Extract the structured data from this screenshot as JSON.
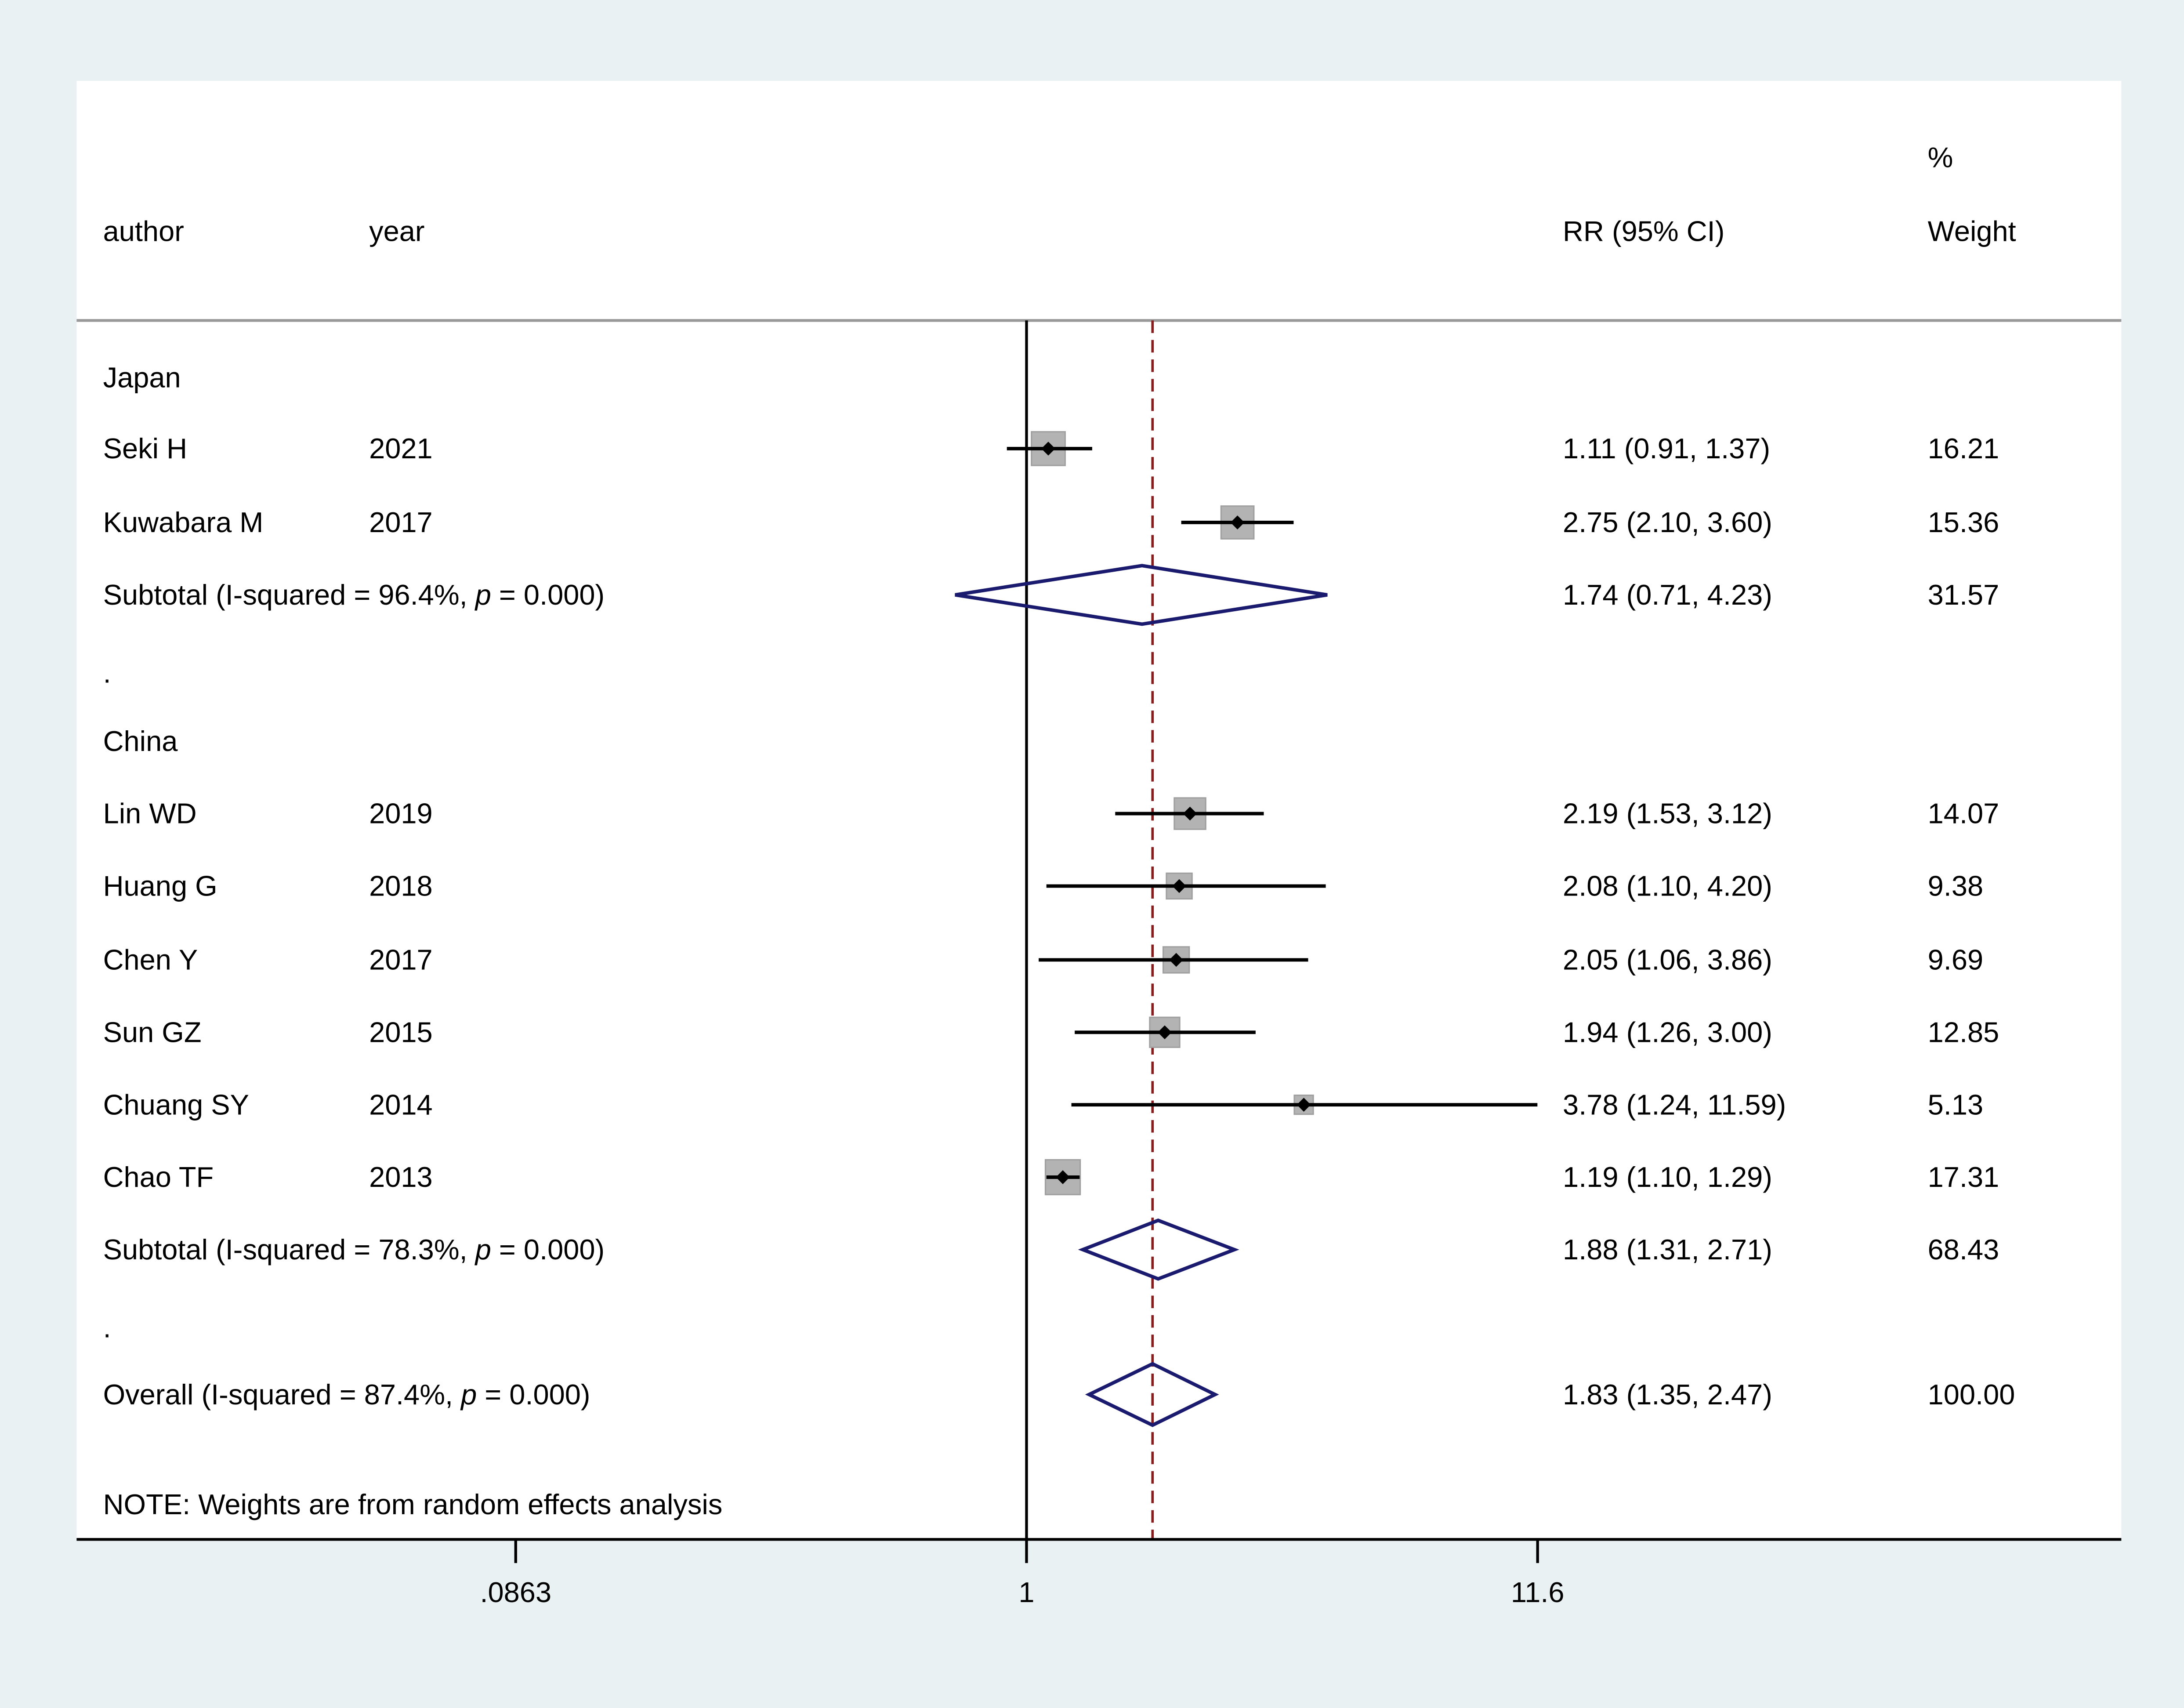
{
  "chart_data": {
    "type": "forest",
    "scale": "log",
    "headers": {
      "author": "author",
      "year": "year",
      "estimate": "RR (95% CI)",
      "weight_top": "%",
      "weight": "Weight"
    },
    "x_ticks": [
      {
        "value": 0.0863,
        "label": ".0863"
      },
      {
        "value": 1,
        "label": "1"
      },
      {
        "value": 11.6,
        "label": "11.6"
      }
    ],
    "xlim": [
      0.0863,
      11.6
    ],
    "null_line": 1,
    "overall_line": 1.83,
    "colors": {
      "background": "#e9f1f3",
      "diamond": "#1a1a6e",
      "overall_line": "#8b1a1a",
      "box": "#b3b3b3"
    },
    "rows": [
      {
        "kind": "group",
        "label": "Japan"
      },
      {
        "kind": "study",
        "author": "Seki H",
        "year": "2021",
        "rr": 1.11,
        "lo": 0.91,
        "hi": 1.37,
        "ci_text": "1.11 (0.91, 1.37)",
        "weight": "16.21"
      },
      {
        "kind": "study",
        "author": "Kuwabara M",
        "year": "2017",
        "rr": 2.75,
        "lo": 2.1,
        "hi": 3.6,
        "ci_text": "2.75 (2.10, 3.60)",
        "weight": "15.36"
      },
      {
        "kind": "subtotal",
        "label": "Subtotal  (I-squared = 96.4%,  p = 0.000)",
        "rr": 1.74,
        "lo": 0.71,
        "hi": 4.23,
        "ci_text": "1.74 (0.71, 4.23)",
        "weight": "31.57"
      },
      {
        "kind": "spacer",
        "label": "."
      },
      {
        "kind": "group",
        "label": "China"
      },
      {
        "kind": "study",
        "author": "Lin WD",
        "year": "2019",
        "rr": 2.19,
        "lo": 1.53,
        "hi": 3.12,
        "ci_text": "2.19 (1.53, 3.12)",
        "weight": "14.07"
      },
      {
        "kind": "study",
        "author": "Huang G",
        "year": "2018",
        "rr": 2.08,
        "lo": 1.1,
        "hi": 4.2,
        "ci_text": "2.08 (1.10, 4.20)",
        "weight": "9.38"
      },
      {
        "kind": "study",
        "author": "Chen Y",
        "year": "2017",
        "rr": 2.05,
        "lo": 1.06,
        "hi": 3.86,
        "ci_text": "2.05 (1.06, 3.86)",
        "weight": "9.69"
      },
      {
        "kind": "study",
        "author": "Sun GZ",
        "year": "2015",
        "rr": 1.94,
        "lo": 1.26,
        "hi": 3.0,
        "ci_text": "1.94 (1.26, 3.00)",
        "weight": "12.85"
      },
      {
        "kind": "study",
        "author": "Chuang SY",
        "year": "2014",
        "rr": 3.78,
        "lo": 1.24,
        "hi": 11.59,
        "ci_text": "3.78 (1.24, 11.59)",
        "weight": "5.13"
      },
      {
        "kind": "study",
        "author": "Chao TF",
        "year": "2013",
        "rr": 1.19,
        "lo": 1.1,
        "hi": 1.29,
        "ci_text": "1.19 (1.10, 1.29)",
        "weight": "17.31"
      },
      {
        "kind": "subtotal",
        "label": "Subtotal  (I-squared = 78.3%,  p = 0.000)",
        "rr": 1.88,
        "lo": 1.31,
        "hi": 2.71,
        "ci_text": "1.88 (1.31, 2.71)",
        "weight": "68.43"
      },
      {
        "kind": "spacer",
        "label": "."
      },
      {
        "kind": "overall",
        "label": "Overall  (I-squared = 87.4%,  p = 0.000)",
        "rr": 1.83,
        "lo": 1.35,
        "hi": 2.47,
        "ci_text": "1.83 (1.35, 2.47)",
        "weight": "100.00"
      }
    ],
    "note": "NOTE: Weights are from random effects analysis"
  }
}
